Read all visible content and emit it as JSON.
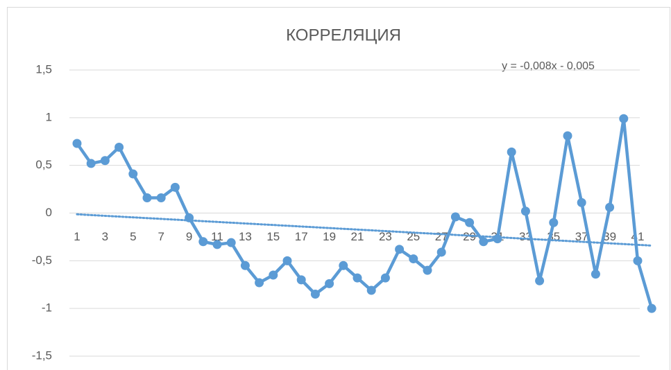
{
  "chart_data": {
    "type": "line",
    "title": "КОРРЕЛЯЦИЯ",
    "categories": [
      1,
      null,
      3,
      null,
      5,
      null,
      7,
      null,
      9,
      null,
      11,
      null,
      13,
      null,
      15,
      null,
      17,
      null,
      19,
      null,
      21,
      null,
      23,
      null,
      25,
      null,
      27,
      null,
      29,
      null,
      31,
      null,
      33,
      null,
      35,
      null,
      37,
      null,
      39,
      null,
      41,
      null
    ],
    "series": [
      {
        "name": null,
        "color": "#5b9bd5",
        "values": [
          0.73,
          0.52,
          0.55,
          0.69,
          0.41,
          0.16,
          0.16,
          0.27,
          -0.05,
          -0.3,
          -0.33,
          -0.31,
          -0.55,
          -0.73,
          -0.65,
          -0.5,
          -0.7,
          -0.85,
          -0.74,
          -0.55,
          -0.68,
          -0.81,
          -0.68,
          -0.38,
          -0.48,
          -0.6,
          -0.41,
          -0.04,
          -0.1,
          -0.3,
          -0.27,
          0.64,
          0.02,
          -0.71,
          -0.1,
          0.81,
          0.11,
          -0.64,
          0.06,
          0.99,
          -0.5,
          -1.0
        ]
      }
    ],
    "trendline": {
      "slope": -0.008,
      "intercept": -0.005,
      "label": "y = -0,008x - 0,005"
    },
    "ylim": [
      -1.5,
      1.5
    ],
    "yticks": [
      {
        "value": -1.5,
        "label": "-1,5"
      },
      -1,
      {
        "value": -0.5,
        "label": "-0,5"
      },
      0,
      {
        "value": 0.5,
        "label": "0,5"
      },
      1,
      {
        "value": 1.5,
        "label": "1,5"
      }
    ],
    "grid": true
  }
}
